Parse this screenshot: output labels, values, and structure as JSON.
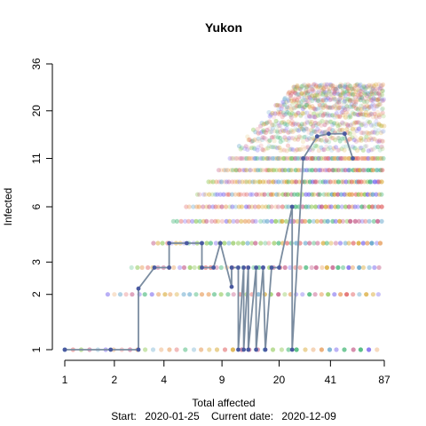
{
  "chart_data": {
    "type": "scatter",
    "title": "Yukon",
    "xlabel": "Total affected",
    "ylabel": "Infected",
    "x_scale": "log",
    "y_scale": "log",
    "xlim": [
      1,
      87
    ],
    "ylim": [
      1,
      36
    ],
    "x_ticks": [
      1,
      2,
      4,
      9,
      20,
      41,
      87
    ],
    "y_ticks": [
      1,
      2,
      3,
      6,
      11,
      20,
      36
    ],
    "grid": false,
    "footer": {
      "start_label": "Start:",
      "start_date": "2020-01-25",
      "current_label": "Current date:",
      "current_date": "2020-12-09"
    },
    "observed_path": {
      "name": "observed",
      "color": "#7a8ca0",
      "points": [
        [
          1,
          1
        ],
        [
          1.9,
          1
        ],
        [
          2.8,
          1
        ],
        [
          2.8,
          2.15
        ],
        [
          3.5,
          2.8
        ],
        [
          4.3,
          2.8
        ],
        [
          4.3,
          3.8
        ],
        [
          5.5,
          3.8
        ],
        [
          6.8,
          3.8
        ],
        [
          6.8,
          2.8
        ],
        [
          8,
          2.8
        ],
        [
          8.8,
          3.8
        ],
        [
          10.3,
          2.2
        ],
        [
          10.3,
          2.8
        ],
        [
          11.3,
          2.8
        ],
        [
          11.3,
          1
        ],
        [
          12.2,
          2.8
        ],
        [
          12.2,
          1
        ],
        [
          13,
          2.8
        ],
        [
          13,
          1
        ],
        [
          14.5,
          2.8
        ],
        [
          14.5,
          1
        ],
        [
          16,
          2.8
        ],
        [
          16.5,
          1
        ],
        [
          18,
          2.8
        ],
        [
          20,
          2.8
        ],
        [
          24,
          6
        ],
        [
          24,
          1
        ],
        [
          28,
          11
        ],
        [
          34,
          14.5
        ],
        [
          40,
          15
        ],
        [
          50,
          15
        ],
        [
          56,
          11
        ]
      ]
    },
    "simulation_palette": [
      "#7b68ee",
      "#3cb371",
      "#5aa0c8",
      "#d4a020",
      "#e06060",
      "#c05080",
      "#80c040",
      "#e8a060"
    ]
  }
}
